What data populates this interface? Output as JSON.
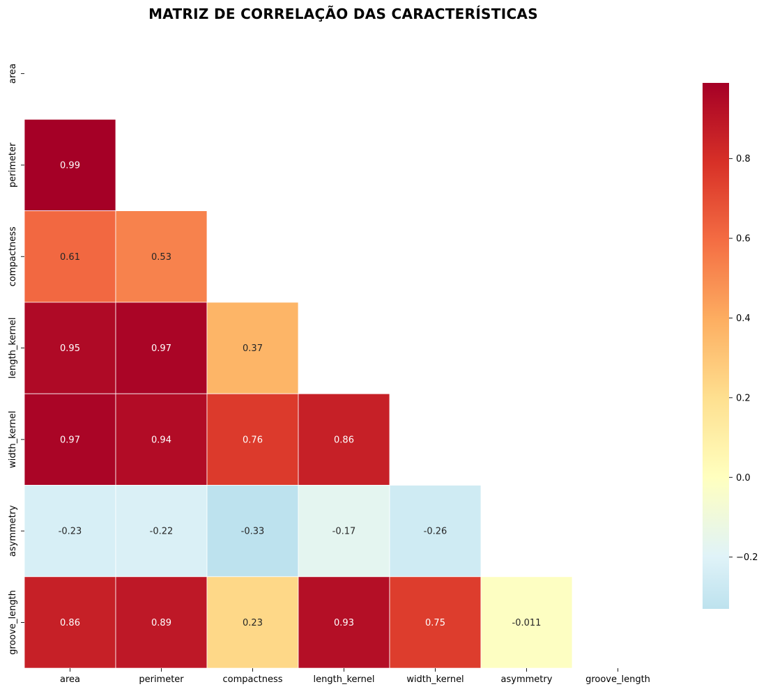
{
  "chart_data": {
    "type": "heatmap",
    "title": "MATRIZ DE CORRELAÇÃO DAS CARACTERÍSTICAS",
    "variables": [
      "area",
      "perimeter",
      "compactness",
      "length_kernel",
      "width_kernel",
      "asymmetry",
      "groove_length"
    ],
    "mask": "upper-triangle-including-diagonal",
    "cells": [
      {
        "row": "perimeter",
        "col": "area",
        "value": 0.99,
        "label": "0.99"
      },
      {
        "row": "compactness",
        "col": "area",
        "value": 0.61,
        "label": "0.61"
      },
      {
        "row": "compactness",
        "col": "perimeter",
        "value": 0.53,
        "label": "0.53"
      },
      {
        "row": "length_kernel",
        "col": "area",
        "value": 0.95,
        "label": "0.95"
      },
      {
        "row": "length_kernel",
        "col": "perimeter",
        "value": 0.97,
        "label": "0.97"
      },
      {
        "row": "length_kernel",
        "col": "compactness",
        "value": 0.37,
        "label": "0.37"
      },
      {
        "row": "width_kernel",
        "col": "area",
        "value": 0.97,
        "label": "0.97"
      },
      {
        "row": "width_kernel",
        "col": "perimeter",
        "value": 0.94,
        "label": "0.94"
      },
      {
        "row": "width_kernel",
        "col": "compactness",
        "value": 0.76,
        "label": "0.76"
      },
      {
        "row": "width_kernel",
        "col": "length_kernel",
        "value": 0.86,
        "label": "0.86"
      },
      {
        "row": "asymmetry",
        "col": "area",
        "value": -0.23,
        "label": "-0.23"
      },
      {
        "row": "asymmetry",
        "col": "perimeter",
        "value": -0.22,
        "label": "-0.22"
      },
      {
        "row": "asymmetry",
        "col": "compactness",
        "value": -0.33,
        "label": "-0.33"
      },
      {
        "row": "asymmetry",
        "col": "length_kernel",
        "value": -0.17,
        "label": "-0.17"
      },
      {
        "row": "asymmetry",
        "col": "width_kernel",
        "value": -0.26,
        "label": "-0.26"
      },
      {
        "row": "groove_length",
        "col": "area",
        "value": 0.86,
        "label": "0.86"
      },
      {
        "row": "groove_length",
        "col": "perimeter",
        "value": 0.89,
        "label": "0.89"
      },
      {
        "row": "groove_length",
        "col": "compactness",
        "value": 0.23,
        "label": "0.23"
      },
      {
        "row": "groove_length",
        "col": "length_kernel",
        "value": 0.93,
        "label": "0.93"
      },
      {
        "row": "groove_length",
        "col": "width_kernel",
        "value": 0.75,
        "label": "0.75"
      },
      {
        "row": "groove_length",
        "col": "asymmetry",
        "value": -0.011,
        "label": "-0.011"
      }
    ],
    "colormap": "RdYlBu_r",
    "color_center": 0.0,
    "colorbar": {
      "range": [
        -0.33,
        0.99
      ],
      "ticks": [
        -0.2,
        0.0,
        0.2,
        0.4,
        0.6,
        0.8
      ],
      "tick_labels": [
        "−0.2",
        "0.0",
        "0.2",
        "0.4",
        "0.6",
        "0.8"
      ]
    },
    "grid": false,
    "cell_border_color": "#ffffff"
  }
}
